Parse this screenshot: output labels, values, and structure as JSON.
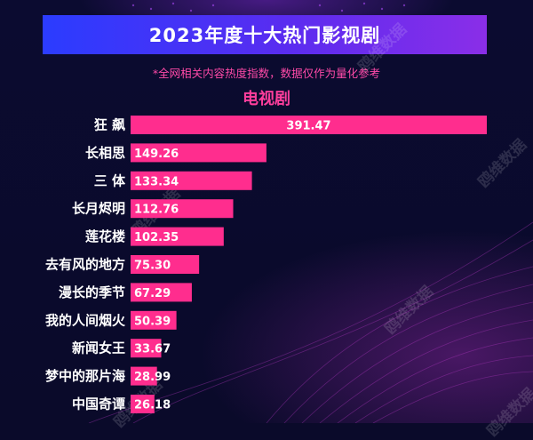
{
  "header": {
    "title": "2023年度十大热门影视剧",
    "subtitle": "*全网相关内容热度指数，数据仅作为量化参考",
    "category": "电视剧"
  },
  "watermarks": [
    "鸥维数据",
    "鸥维数据",
    "鸥维数据",
    "鸥维数据",
    "鸥维数据",
    "鸥维数据"
  ],
  "colors": {
    "bar": "#ff2d8e",
    "title_gradient_start": "#2b3cff",
    "title_gradient_end": "#8a2ee8",
    "accent_text": "#ff3e9c",
    "background": "#0a0a2a"
  },
  "chart_data": {
    "type": "bar",
    "orientation": "horizontal",
    "title": "2023年度十大热门影视剧",
    "subtitle": "电视剧",
    "categories": [
      "狂飙",
      "长相思",
      "三体",
      "长月烬明",
      "莲花楼",
      "去有风的地方",
      "漫长的季节",
      "我的人间烟火",
      "新闻女王",
      "梦中的那片海",
      "中国奇谭"
    ],
    "display_labels": [
      "狂 飙",
      "长相思",
      "三 体",
      "长月烬明",
      "莲花楼",
      "去有风的地方",
      "漫长的季节",
      "我的人间烟火",
      "新闻女王",
      "梦中的那片海",
      "中国奇谭"
    ],
    "values": [
      391.47,
      149.26,
      133.34,
      112.76,
      102.35,
      75.3,
      67.29,
      50.39,
      33.67,
      28.99,
      26.18
    ],
    "value_labels": [
      "391.47",
      "149.26",
      "133.34",
      "112.76",
      "102.35",
      "75.30",
      "67.29",
      "50.39",
      "33.67",
      "28.99",
      "26.18"
    ],
    "xlim": [
      0,
      391.47
    ],
    "grid": false,
    "legend": "none"
  }
}
